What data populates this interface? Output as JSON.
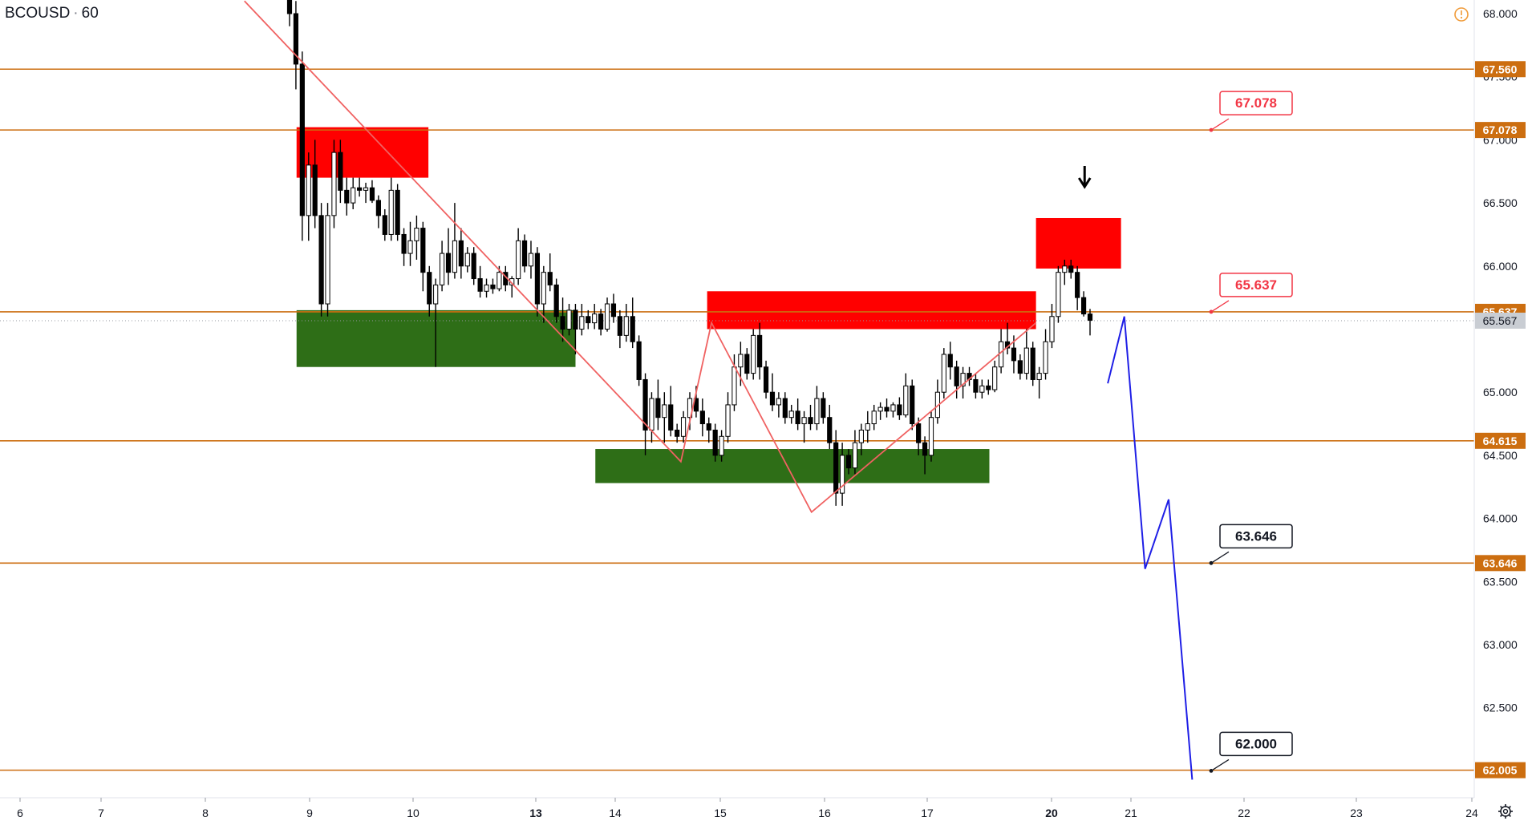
{
  "header": {
    "symbol": "BCOUSD",
    "separator": "·",
    "interval": "60"
  },
  "colors": {
    "level_line": "#cc6e10",
    "supply_zone": "#ff0000",
    "demand_zone": "#2e6e17",
    "zigzag": "#f06262",
    "projection": "#1f1fe6",
    "candle_up": "#ffffff",
    "candle_down": "#000000",
    "current_price_tag": "#c9cdd3"
  },
  "chart_data": {
    "type": "candlestick",
    "symbol": "BCOUSD",
    "interval": "60",
    "x_tick_labels": [
      "6",
      "7",
      "8",
      "9",
      "10",
      "13",
      "14",
      "15",
      "16",
      "17",
      "20",
      "21",
      "22",
      "23",
      "24"
    ],
    "y_tick_labels": [
      "68.000",
      "67.500",
      "67.000",
      "66.500",
      "66.000",
      "65.000",
      "64.500",
      "64.000",
      "63.500",
      "63.000",
      "62.500",
      "62.000"
    ],
    "ylim": [
      61.75,
      68.05
    ],
    "horizontal_levels": [
      {
        "label": "67.560",
        "value": 67.56
      },
      {
        "label": "67.078",
        "value": 67.078
      },
      {
        "label": "65.637",
        "value": 65.637
      },
      {
        "label": "64.615",
        "value": 64.615
      },
      {
        "label": "63.646",
        "value": 63.646
      },
      {
        "label": "62.005",
        "value": 62.005
      }
    ],
    "current_price": {
      "label": "65.567",
      "value": 65.567
    },
    "callouts": [
      {
        "label": "67.078",
        "value": 67.078,
        "style": "red"
      },
      {
        "label": "65.637",
        "value": 65.637,
        "style": "red"
      },
      {
        "label": "63.646",
        "value": 63.646,
        "style": "black"
      },
      {
        "label": "62.000",
        "value": 62.0,
        "style": "black"
      }
    ],
    "zones": [
      {
        "kind": "supply",
        "date_from": "Jan 8 21:00",
        "date_to": "Jan 10 03:00",
        "price_low": 66.7,
        "price_high": 67.1
      },
      {
        "kind": "supply",
        "date_from": "Jan 14 21:00",
        "date_to": "Jan 17 21:00",
        "price_low": 65.5,
        "price_high": 65.8
      },
      {
        "kind": "supply",
        "date_from": "Jan 17 21:00",
        "date_to": "Jan 20 21:00",
        "price_low": 65.98,
        "price_high": 66.38
      },
      {
        "kind": "demand",
        "date_from": "Jan 8 21:00",
        "date_to": "Jan 13 12:00",
        "price_low": 65.2,
        "price_high": 65.65
      },
      {
        "kind": "demand",
        "date_from": "Jan 13 18:00",
        "date_to": "Jan 17 12:00",
        "price_low": 64.28,
        "price_high": 64.55
      }
    ],
    "zigzag": [
      {
        "date": "Jan 8 09:00",
        "price": 68.1
      },
      {
        "date": "Jan 14 15:00",
        "price": 64.45
      },
      {
        "date": "Jan 14 22:00",
        "price": 65.55
      },
      {
        "date": "Jan 15 21:00",
        "price": 64.05
      },
      {
        "date": "Jan 17 21:00",
        "price": 65.55
      }
    ],
    "projection": [
      {
        "date": "Jan 20 17:00",
        "price": 65.07
      },
      {
        "date": "Jan 20 22:00",
        "price": 65.6
      },
      {
        "date": "Jan 21 03:00",
        "price": 63.6
      },
      {
        "date": "Jan 21 08:00",
        "price": 64.15
      },
      {
        "date": "Jan 21 13:00",
        "price": 61.93
      }
    ],
    "arrow": {
      "date": "Jan 20 10:00",
      "direction": "down"
    },
    "candles": [
      {
        "o": 68.3,
        "h": 68.5,
        "l": 67.9,
        "c": 68.0
      },
      {
        "o": 68.0,
        "h": 68.1,
        "l": 67.4,
        "c": 67.6
      },
      {
        "o": 67.6,
        "h": 67.7,
        "l": 66.2,
        "c": 66.4
      },
      {
        "o": 66.4,
        "h": 66.9,
        "l": 66.2,
        "c": 66.8
      },
      {
        "o": 66.8,
        "h": 67.0,
        "l": 66.3,
        "c": 66.4
      },
      {
        "o": 66.4,
        "h": 66.5,
        "l": 65.6,
        "c": 65.7
      },
      {
        "o": 65.7,
        "h": 66.5,
        "l": 65.6,
        "c": 66.4
      },
      {
        "o": 66.4,
        "h": 67.0,
        "l": 66.3,
        "c": 66.9
      },
      {
        "o": 66.9,
        "h": 67.0,
        "l": 66.5,
        "c": 66.6
      },
      {
        "o": 66.6,
        "h": 66.7,
        "l": 66.4,
        "c": 66.5
      },
      {
        "o": 66.5,
        "h": 66.7,
        "l": 66.45,
        "c": 66.62
      },
      {
        "o": 66.62,
        "h": 66.7,
        "l": 66.55,
        "c": 66.6
      },
      {
        "o": 66.6,
        "h": 66.66,
        "l": 66.5,
        "c": 66.62
      },
      {
        "o": 66.62,
        "h": 66.68,
        "l": 66.5,
        "c": 66.52
      },
      {
        "o": 66.52,
        "h": 66.56,
        "l": 66.3,
        "c": 66.4
      },
      {
        "o": 66.4,
        "h": 66.45,
        "l": 66.2,
        "c": 66.25
      },
      {
        "o": 66.25,
        "h": 66.7,
        "l": 66.2,
        "c": 66.6
      },
      {
        "o": 66.6,
        "h": 66.65,
        "l": 66.2,
        "c": 66.25
      },
      {
        "o": 66.25,
        "h": 66.3,
        "l": 66.0,
        "c": 66.1
      },
      {
        "o": 66.1,
        "h": 66.35,
        "l": 66.0,
        "c": 66.2
      },
      {
        "o": 66.2,
        "h": 66.4,
        "l": 66.05,
        "c": 66.3
      },
      {
        "o": 66.3,
        "h": 66.35,
        "l": 65.8,
        "c": 65.95
      },
      {
        "o": 65.95,
        "h": 66.0,
        "l": 65.6,
        "c": 65.7
      },
      {
        "o": 65.7,
        "h": 65.9,
        "l": 65.2,
        "c": 65.85
      },
      {
        "o": 65.85,
        "h": 66.2,
        "l": 65.8,
        "c": 66.1
      },
      {
        "o": 66.1,
        "h": 66.3,
        "l": 65.85,
        "c": 65.95
      },
      {
        "o": 65.95,
        "h": 66.5,
        "l": 65.9,
        "c": 66.2
      },
      {
        "o": 66.2,
        "h": 66.3,
        "l": 65.9,
        "c": 66.0
      },
      {
        "o": 66.0,
        "h": 66.15,
        "l": 65.95,
        "c": 66.1
      },
      {
        "o": 66.1,
        "h": 66.15,
        "l": 65.85,
        "c": 65.9
      },
      {
        "o": 65.9,
        "h": 66.0,
        "l": 65.75,
        "c": 65.8
      },
      {
        "o": 65.8,
        "h": 65.9,
        "l": 65.75,
        "c": 65.85
      },
      {
        "o": 65.85,
        "h": 65.9,
        "l": 65.78,
        "c": 65.82
      },
      {
        "o": 65.82,
        "h": 66.0,
        "l": 65.8,
        "c": 65.95
      },
      {
        "o": 65.95,
        "h": 66.0,
        "l": 65.8,
        "c": 65.85
      },
      {
        "o": 65.85,
        "h": 65.92,
        "l": 65.75,
        "c": 65.9
      },
      {
        "o": 65.9,
        "h": 66.3,
        "l": 65.85,
        "c": 66.2
      },
      {
        "o": 66.2,
        "h": 66.25,
        "l": 65.95,
        "c": 66.0
      },
      {
        "o": 66.0,
        "h": 66.2,
        "l": 65.9,
        "c": 66.1
      },
      {
        "o": 66.1,
        "h": 66.15,
        "l": 65.6,
        "c": 65.7
      },
      {
        "o": 65.7,
        "h": 66.0,
        "l": 65.55,
        "c": 65.95
      },
      {
        "o": 65.95,
        "h": 66.1,
        "l": 65.8,
        "c": 65.85
      },
      {
        "o": 65.85,
        "h": 65.9,
        "l": 65.55,
        "c": 65.6
      },
      {
        "o": 65.6,
        "h": 65.75,
        "l": 65.4,
        "c": 65.5
      },
      {
        "o": 65.5,
        "h": 65.7,
        "l": 65.45,
        "c": 65.65
      },
      {
        "o": 65.65,
        "h": 65.7,
        "l": 65.3,
        "c": 65.5
      },
      {
        "o": 65.5,
        "h": 65.7,
        "l": 65.45,
        "c": 65.6
      },
      {
        "o": 65.6,
        "h": 65.65,
        "l": 65.5,
        "c": 65.55
      },
      {
        "o": 65.55,
        "h": 65.7,
        "l": 65.5,
        "c": 65.62
      },
      {
        "o": 65.62,
        "h": 65.66,
        "l": 65.45,
        "c": 65.5
      },
      {
        "o": 65.5,
        "h": 65.75,
        "l": 65.48,
        "c": 65.7
      },
      {
        "o": 65.7,
        "h": 65.78,
        "l": 65.55,
        "c": 65.6
      },
      {
        "o": 65.6,
        "h": 65.65,
        "l": 65.35,
        "c": 65.45
      },
      {
        "o": 65.45,
        "h": 65.7,
        "l": 65.4,
        "c": 65.6
      },
      {
        "o": 65.6,
        "h": 65.75,
        "l": 65.35,
        "c": 65.4
      },
      {
        "o": 65.4,
        "h": 65.45,
        "l": 65.05,
        "c": 65.1
      },
      {
        "o": 65.1,
        "h": 65.15,
        "l": 64.5,
        "c": 64.7
      },
      {
        "o": 64.7,
        "h": 65.0,
        "l": 64.6,
        "c": 64.95
      },
      {
        "o": 64.95,
        "h": 65.1,
        "l": 64.7,
        "c": 64.8
      },
      {
        "o": 64.8,
        "h": 65.0,
        "l": 64.6,
        "c": 64.9
      },
      {
        "o": 64.9,
        "h": 65.05,
        "l": 64.65,
        "c": 64.7
      },
      {
        "o": 64.7,
        "h": 64.75,
        "l": 64.6,
        "c": 64.65
      },
      {
        "o": 64.65,
        "h": 64.85,
        "l": 64.6,
        "c": 64.8
      },
      {
        "o": 64.8,
        "h": 65.0,
        "l": 64.7,
        "c": 64.95
      },
      {
        "o": 64.95,
        "h": 65.05,
        "l": 64.8,
        "c": 64.85
      },
      {
        "o": 64.85,
        "h": 64.95,
        "l": 64.65,
        "c": 64.75
      },
      {
        "o": 64.75,
        "h": 64.8,
        "l": 64.6,
        "c": 64.7
      },
      {
        "o": 64.7,
        "h": 64.75,
        "l": 64.45,
        "c": 64.5
      },
      {
        "o": 64.5,
        "h": 64.7,
        "l": 64.45,
        "c": 64.65
      },
      {
        "o": 64.65,
        "h": 65.0,
        "l": 64.6,
        "c": 64.9
      },
      {
        "o": 64.9,
        "h": 65.3,
        "l": 64.85,
        "c": 65.2
      },
      {
        "o": 65.2,
        "h": 65.4,
        "l": 65.05,
        "c": 65.3
      },
      {
        "o": 65.3,
        "h": 65.35,
        "l": 65.1,
        "c": 65.15
      },
      {
        "o": 65.15,
        "h": 65.5,
        "l": 65.1,
        "c": 65.45
      },
      {
        "o": 65.45,
        "h": 65.55,
        "l": 65.1,
        "c": 65.2
      },
      {
        "o": 65.2,
        "h": 65.25,
        "l": 64.95,
        "c": 65.0
      },
      {
        "o": 65.0,
        "h": 65.15,
        "l": 64.85,
        "c": 64.9
      },
      {
        "o": 64.9,
        "h": 65.0,
        "l": 64.8,
        "c": 64.95
      },
      {
        "o": 64.95,
        "h": 65.0,
        "l": 64.75,
        "c": 64.8
      },
      {
        "o": 64.8,
        "h": 64.9,
        "l": 64.75,
        "c": 64.85
      },
      {
        "o": 64.85,
        "h": 64.95,
        "l": 64.7,
        "c": 64.75
      },
      {
        "o": 64.75,
        "h": 64.85,
        "l": 64.6,
        "c": 64.8
      },
      {
        "o": 64.8,
        "h": 64.9,
        "l": 64.7,
        "c": 64.75
      },
      {
        "o": 64.75,
        "h": 65.05,
        "l": 64.7,
        "c": 64.95
      },
      {
        "o": 64.95,
        "h": 65.0,
        "l": 64.75,
        "c": 64.8
      },
      {
        "o": 64.8,
        "h": 64.9,
        "l": 64.55,
        "c": 64.6
      },
      {
        "o": 64.6,
        "h": 64.7,
        "l": 64.1,
        "c": 64.2
      },
      {
        "o": 64.2,
        "h": 64.6,
        "l": 64.1,
        "c": 64.5
      },
      {
        "o": 64.5,
        "h": 64.55,
        "l": 64.35,
        "c": 64.4
      },
      {
        "o": 64.4,
        "h": 64.7,
        "l": 64.35,
        "c": 64.6
      },
      {
        "o": 64.6,
        "h": 64.75,
        "l": 64.5,
        "c": 64.7
      },
      {
        "o": 64.7,
        "h": 64.85,
        "l": 64.6,
        "c": 64.75
      },
      {
        "o": 64.75,
        "h": 64.9,
        "l": 64.7,
        "c": 64.85
      },
      {
        "o": 64.85,
        "h": 64.92,
        "l": 64.78,
        "c": 64.88
      },
      {
        "o": 64.88,
        "h": 64.95,
        "l": 64.8,
        "c": 64.85
      },
      {
        "o": 64.85,
        "h": 64.92,
        "l": 64.8,
        "c": 64.9
      },
      {
        "o": 64.9,
        "h": 64.96,
        "l": 64.78,
        "c": 64.82
      },
      {
        "o": 64.82,
        "h": 65.15,
        "l": 64.8,
        "c": 65.05
      },
      {
        "o": 65.05,
        "h": 65.1,
        "l": 64.7,
        "c": 64.75
      },
      {
        "o": 64.75,
        "h": 64.8,
        "l": 64.5,
        "c": 64.6
      },
      {
        "o": 64.6,
        "h": 64.65,
        "l": 64.35,
        "c": 64.5
      },
      {
        "o": 64.5,
        "h": 64.85,
        "l": 64.45,
        "c": 64.8
      },
      {
        "o": 64.8,
        "h": 65.1,
        "l": 64.75,
        "c": 65.0
      },
      {
        "o": 65.0,
        "h": 65.35,
        "l": 64.95,
        "c": 65.3
      },
      {
        "o": 65.3,
        "h": 65.4,
        "l": 65.1,
        "c": 65.2
      },
      {
        "o": 65.2,
        "h": 65.25,
        "l": 64.95,
        "c": 65.05
      },
      {
        "o": 65.05,
        "h": 65.2,
        "l": 64.95,
        "c": 65.15
      },
      {
        "o": 65.15,
        "h": 65.2,
        "l": 65.05,
        "c": 65.1
      },
      {
        "o": 65.1,
        "h": 65.15,
        "l": 64.95,
        "c": 65.0
      },
      {
        "o": 65.0,
        "h": 65.1,
        "l": 64.95,
        "c": 65.05
      },
      {
        "o": 65.05,
        "h": 65.1,
        "l": 64.98,
        "c": 65.02
      },
      {
        "o": 65.02,
        "h": 65.25,
        "l": 65.0,
        "c": 65.2
      },
      {
        "o": 65.2,
        "h": 65.5,
        "l": 65.15,
        "c": 65.4
      },
      {
        "o": 65.4,
        "h": 65.55,
        "l": 65.3,
        "c": 65.35
      },
      {
        "o": 65.35,
        "h": 65.45,
        "l": 65.15,
        "c": 65.25
      },
      {
        "o": 65.25,
        "h": 65.3,
        "l": 65.1,
        "c": 65.15
      },
      {
        "o": 65.15,
        "h": 65.5,
        "l": 65.1,
        "c": 65.35
      },
      {
        "o": 65.35,
        "h": 65.4,
        "l": 65.05,
        "c": 65.1
      },
      {
        "o": 65.1,
        "h": 65.2,
        "l": 64.95,
        "c": 65.15
      },
      {
        "o": 65.15,
        "h": 65.5,
        "l": 65.1,
        "c": 65.4
      },
      {
        "o": 65.4,
        "h": 65.7,
        "l": 65.35,
        "c": 65.6
      },
      {
        "o": 65.6,
        "h": 66.0,
        "l": 65.55,
        "c": 65.95
      },
      {
        "o": 65.95,
        "h": 66.05,
        "l": 65.85,
        "c": 66.0
      },
      {
        "o": 66.0,
        "h": 66.05,
        "l": 65.9,
        "c": 65.95
      },
      {
        "o": 65.95,
        "h": 66.0,
        "l": 65.65,
        "c": 65.75
      },
      {
        "o": 65.75,
        "h": 65.8,
        "l": 65.6,
        "c": 65.62
      },
      {
        "o": 65.62,
        "h": 65.66,
        "l": 65.45,
        "c": 65.57
      }
    ]
  }
}
